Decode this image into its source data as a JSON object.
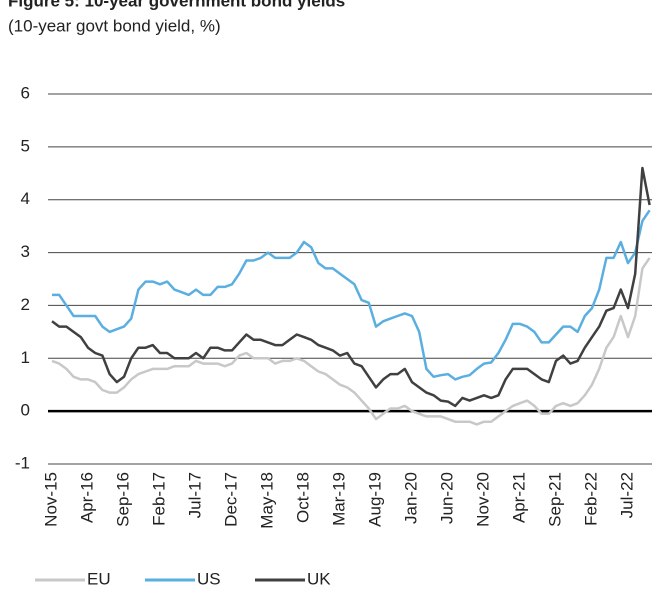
{
  "chart_data": {
    "type": "line",
    "title": "Figure 5: 10-year government bond yields",
    "subtitle": "(10-year govt bond yield, %)",
    "categories": [
      "Nov-15",
      null,
      null,
      null,
      null,
      "Apr-16",
      null,
      null,
      null,
      null,
      "Sep-16",
      null,
      null,
      null,
      null,
      "Feb-17",
      null,
      null,
      null,
      null,
      "Jul-17",
      null,
      null,
      null,
      null,
      "Dec-17",
      null,
      null,
      null,
      null,
      "May-18",
      null,
      null,
      null,
      null,
      "Oct-18",
      null,
      null,
      null,
      null,
      "Mar-19",
      null,
      null,
      null,
      null,
      "Aug-19",
      null,
      null,
      null,
      null,
      "Jan-20",
      null,
      null,
      null,
      null,
      "Jun-20",
      null,
      null,
      null,
      null,
      "Nov-20",
      null,
      null,
      null,
      null,
      "Apr-21",
      null,
      null,
      null,
      null,
      "Sep-21",
      null,
      null,
      null,
      null,
      "Feb-22",
      null,
      null,
      null,
      null,
      "Jul-22",
      null,
      null,
      null
    ],
    "series": [
      {
        "name": "EU",
        "color": "#c8c8c8",
        "values": [
          0.95,
          0.9,
          0.8,
          0.65,
          0.6,
          0.6,
          0.55,
          0.4,
          0.35,
          0.35,
          0.45,
          0.6,
          0.7,
          0.75,
          0.8,
          0.8,
          0.8,
          0.85,
          0.85,
          0.85,
          0.95,
          0.9,
          0.9,
          0.9,
          0.85,
          0.9,
          1.05,
          1.1,
          1.0,
          1.0,
          1.0,
          0.9,
          0.95,
          0.95,
          1.0,
          0.95,
          0.85,
          0.75,
          0.7,
          0.6,
          0.5,
          0.45,
          0.35,
          0.2,
          0.05,
          -0.15,
          -0.05,
          0.05,
          0.05,
          0.1,
          0.0,
          -0.05,
          -0.1,
          -0.1,
          -0.1,
          -0.15,
          -0.2,
          -0.2,
          -0.2,
          -0.25,
          -0.2,
          -0.2,
          -0.1,
          0.0,
          0.1,
          0.15,
          0.2,
          0.1,
          -0.05,
          -0.05,
          0.1,
          0.15,
          0.1,
          0.15,
          0.3,
          0.5,
          0.8,
          1.2,
          1.4,
          1.8,
          1.4,
          1.8,
          2.7,
          2.9
        ]
      },
      {
        "name": "US",
        "color": "#5aafe0",
        "values": [
          2.2,
          2.2,
          2.0,
          1.8,
          1.8,
          1.8,
          1.8,
          1.6,
          1.5,
          1.55,
          1.6,
          1.75,
          2.3,
          2.45,
          2.45,
          2.4,
          2.45,
          2.3,
          2.25,
          2.2,
          2.3,
          2.2,
          2.2,
          2.35,
          2.35,
          2.4,
          2.6,
          2.85,
          2.85,
          2.9,
          3.0,
          2.9,
          2.9,
          2.9,
          3.0,
          3.2,
          3.1,
          2.8,
          2.7,
          2.7,
          2.6,
          2.5,
          2.4,
          2.1,
          2.05,
          1.6,
          1.7,
          1.75,
          1.8,
          1.85,
          1.8,
          1.5,
          0.8,
          0.65,
          0.68,
          0.7,
          0.6,
          0.65,
          0.68,
          0.8,
          0.9,
          0.92,
          1.1,
          1.35,
          1.65,
          1.65,
          1.6,
          1.5,
          1.3,
          1.3,
          1.45,
          1.6,
          1.6,
          1.5,
          1.8,
          1.95,
          2.3,
          2.9,
          2.9,
          3.2,
          2.8,
          3.0,
          3.6,
          3.8
        ]
      },
      {
        "name": "UK",
        "color": "#404040",
        "values": [
          1.7,
          1.6,
          1.6,
          1.5,
          1.4,
          1.2,
          1.1,
          1.05,
          0.7,
          0.55,
          0.65,
          1.0,
          1.2,
          1.2,
          1.25,
          1.1,
          1.1,
          1.0,
          1.0,
          1.0,
          1.1,
          1.0,
          1.2,
          1.2,
          1.15,
          1.15,
          1.3,
          1.45,
          1.35,
          1.35,
          1.3,
          1.25,
          1.25,
          1.35,
          1.45,
          1.4,
          1.35,
          1.25,
          1.2,
          1.15,
          1.05,
          1.1,
          0.9,
          0.85,
          0.65,
          0.45,
          0.6,
          0.7,
          0.7,
          0.8,
          0.55,
          0.45,
          0.35,
          0.3,
          0.2,
          0.18,
          0.1,
          0.25,
          0.2,
          0.25,
          0.3,
          0.25,
          0.3,
          0.6,
          0.8,
          0.8,
          0.8,
          0.7,
          0.6,
          0.55,
          0.95,
          1.05,
          0.9,
          0.95,
          1.2,
          1.4,
          1.6,
          1.9,
          1.95,
          2.3,
          1.95,
          2.6,
          4.6,
          3.9
        ]
      }
    ],
    "ylim": [
      -1,
      6
    ],
    "yticks": [
      -1,
      0,
      1,
      2,
      3,
      4,
      5,
      6
    ],
    "grid": true,
    "legend": "bottom"
  }
}
